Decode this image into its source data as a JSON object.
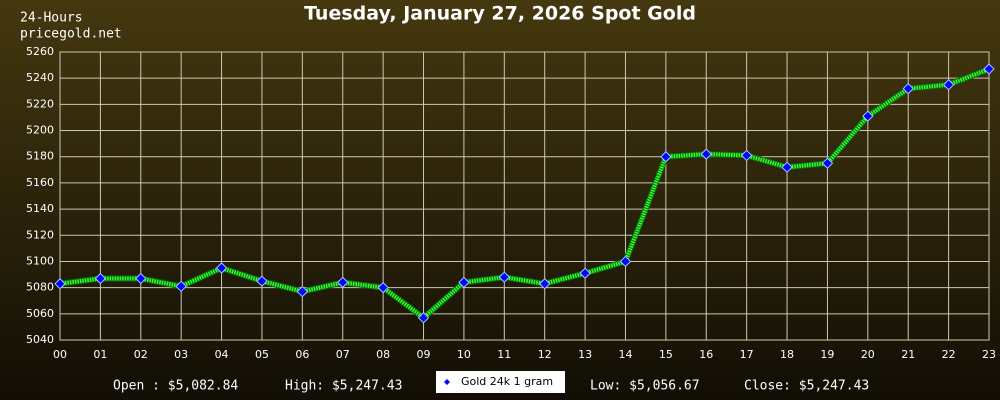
{
  "chart_data": {
    "type": "line",
    "title": "Tuesday, January 27, 2026 Spot Gold",
    "subtitle": "24-Hours",
    "source": "pricegold.net",
    "categories": [
      "00",
      "01",
      "02",
      "03",
      "04",
      "05",
      "06",
      "07",
      "08",
      "09",
      "10",
      "11",
      "12",
      "13",
      "14",
      "15",
      "16",
      "17",
      "18",
      "19",
      "20",
      "21",
      "22",
      "23"
    ],
    "series": [
      {
        "name": "Gold 24k 1 gram",
        "color": "#33ff33",
        "marker_color": "#0000ff",
        "values": [
          5083,
          5087,
          5087,
          5081,
          5095,
          5085,
          5077,
          5084,
          5080,
          5057,
          5084,
          5088,
          5083,
          5091,
          5100,
          5180,
          5182,
          5181,
          5172,
          5175,
          5211,
          5232,
          5235,
          5247
        ]
      }
    ],
    "ylim": [
      5040,
      5260
    ],
    "yticks": [
      5040,
      5060,
      5080,
      5100,
      5120,
      5140,
      5160,
      5180,
      5200,
      5220,
      5240,
      5260
    ],
    "grid": true,
    "footer": [
      "Open : $5,082.84",
      "High: $5,247.43",
      "Low: $5,056.67",
      "Close: $5,247.43"
    ]
  }
}
